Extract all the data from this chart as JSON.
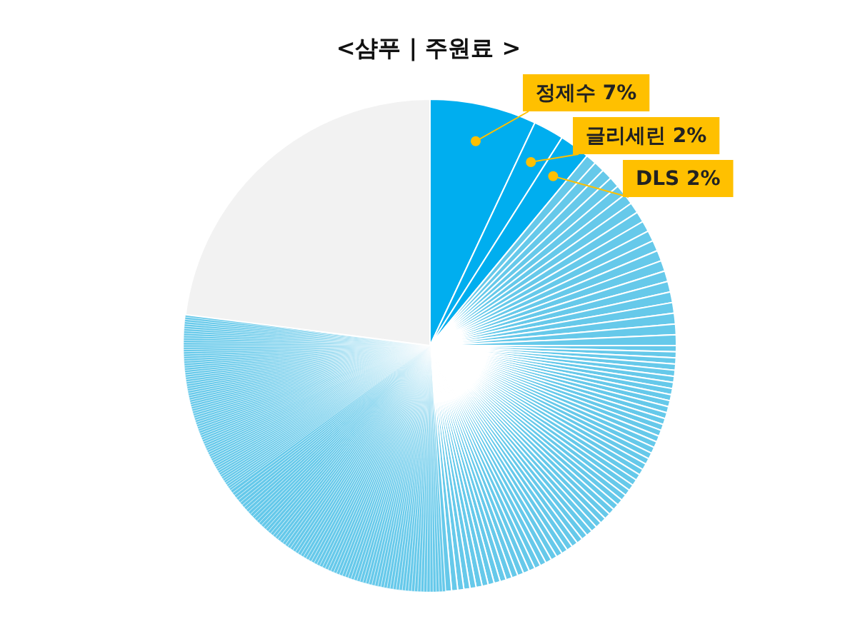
{
  "chart_data": {
    "type": "pie",
    "title": "<샴푸 | 주원료 >",
    "categories": [
      "정제수",
      "글리세린",
      "DLS",
      null,
      null,
      null,
      null,
      null,
      null,
      null,
      null,
      null,
      null,
      null,
      null,
      null,
      null,
      null,
      null,
      null,
      null,
      null,
      null,
      null,
      null,
      null,
      null,
      null,
      null,
      null,
      null,
      null,
      null,
      null,
      null,
      null,
      null,
      null,
      null,
      null,
      null,
      null,
      null,
      null,
      null,
      null,
      null,
      null,
      null,
      null,
      null,
      null,
      null,
      null,
      null,
      null,
      null,
      null,
      null,
      null,
      null,
      null,
      null,
      null,
      null,
      null,
      null,
      null,
      null,
      null,
      null,
      null,
      null,
      null,
      null,
      null,
      null,
      null,
      null,
      null,
      null,
      null,
      null,
      null,
      null,
      null,
      null,
      null,
      null,
      null,
      null,
      null,
      null,
      null,
      null,
      null,
      null,
      null,
      null,
      null,
      null,
      null,
      null,
      null,
      null,
      null,
      null,
      null,
      null,
      null,
      null,
      null,
      null,
      null,
      null,
      null,
      null,
      null,
      null,
      null,
      null,
      null,
      null,
      null,
      null,
      null,
      null,
      null,
      null,
      null,
      null,
      null,
      null,
      null,
      null,
      null,
      null,
      null,
      null,
      null,
      null,
      null,
      null,
      null,
      null,
      null,
      null,
      null,
      null,
      null,
      null,
      null,
      null,
      null,
      null,
      null,
      null,
      null,
      null,
      null,
      null,
      null,
      null,
      null,
      null,
      null,
      null,
      null,
      null,
      null,
      null,
      null,
      null,
      null,
      null,
      null,
      null,
      null,
      null,
      null,
      null,
      null,
      null,
      null,
      null,
      null,
      null,
      null,
      null,
      null,
      null,
      null,
      null,
      null,
      null,
      null,
      null,
      null,
      null,
      null,
      null,
      null,
      null,
      null,
      null,
      null,
      null,
      null,
      null,
      null,
      null,
      null,
      null,
      null,
      null,
      null,
      null,
      null,
      null,
      null,
      null,
      null,
      null,
      null,
      null,
      null,
      null,
      null,
      null,
      null,
      null,
      null,
      null,
      null,
      null,
      null,
      null,
      null,
      null,
      null,
      null,
      null,
      null,
      null
    ],
    "values": [
      7,
      2,
      2,
      0.7,
      0.7,
      0.7,
      0.7,
      0.7,
      0.7,
      0.7,
      0.7,
      0.7,
      0.7,
      0.7,
      0.7,
      0.7,
      0.7,
      0.7,
      0.7,
      0.7,
      0.7,
      0.7,
      0.7,
      0.4,
      0.4,
      0.4,
      0.4,
      0.4,
      0.4,
      0.4,
      0.4,
      0.4,
      0.4,
      0.4,
      0.4,
      0.4,
      0.4,
      0.4,
      0.4,
      0.4,
      0.4,
      0.4,
      0.4,
      0.4,
      0.4,
      0.4,
      0.4,
      0.4,
      0.4,
      0.4,
      0.4,
      0.4,
      0.4,
      0.4,
      0.4,
      0.4,
      0.4,
      0.4,
      0.4,
      0.4,
      0.4,
      0.4,
      0.4,
      0.4,
      0.4,
      0.4,
      0.4,
      0.4,
      0.4,
      0.4,
      0.4,
      0.4,
      0.4,
      0.4,
      0.4,
      0.4,
      0.4,
      0.4,
      0.4,
      0.4,
      0.4,
      0.4,
      0.4,
      0.2,
      0.2,
      0.2,
      0.2,
      0.2,
      0.2,
      0.2,
      0.2,
      0.2,
      0.2,
      0.2,
      0.2,
      0.2,
      0.2,
      0.2,
      0.2,
      0.2,
      0.2,
      0.2,
      0.2,
      0.2,
      0.2,
      0.2,
      0.2,
      0.2,
      0.2,
      0.2,
      0.2,
      0.2,
      0.2,
      0.2,
      0.2,
      0.2,
      0.2,
      0.2,
      0.2,
      0.2,
      0.2,
      0.2,
      0.2,
      0.2,
      0.2,
      0.2,
      0.2,
      0.2,
      0.2,
      0.2,
      0.2,
      0.2,
      0.2,
      0.2,
      0.2,
      0.2,
      0.2,
      0.2,
      0.2,
      0.2,
      0.2,
      0.2,
      0.2,
      0.2,
      0.2,
      0.2,
      0.2,
      0.2,
      0.2,
      0.2,
      0.2,
      0.2,
      0.2,
      0.2,
      0.2,
      0.2,
      0.2,
      0.2,
      0.2,
      0.2,
      0.2,
      0.2,
      0.2,
      0.15,
      0.15,
      0.15,
      0.15,
      0.15,
      0.15,
      0.15,
      0.15,
      0.15,
      0.15,
      0.15,
      0.15,
      0.15,
      0.15,
      0.15,
      0.15,
      0.15,
      0.15,
      0.15,
      0.15,
      0.15,
      0.15,
      0.15,
      0.15,
      0.15,
      0.15,
      0.15,
      0.15,
      0.15,
      0.15,
      0.15,
      0.15,
      0.15,
      0.15,
      0.15,
      0.15,
      0.15,
      0.15,
      0.15,
      0.15,
      0.15,
      0.15,
      0.15,
      0.15,
      0.15,
      0.15,
      0.15,
      0.15,
      0.15,
      0.15,
      0.15,
      0.15,
      0.15,
      0.15,
      0.15,
      0.15,
      0.15,
      0.15,
      0.15,
      0.15,
      0.15,
      0.15,
      0.15,
      0.15,
      0.15,
      0.15,
      0.15,
      0.15,
      0.15,
      0.15,
      0.15,
      0.15,
      0.15,
      0.15,
      0.15,
      0.15,
      0.15,
      0.15,
      0.15,
      0.15,
      23
    ],
    "value_labels": [
      "7%",
      "2%",
      "2%",
      null,
      null,
      null,
      null,
      null,
      null,
      null,
      null,
      null,
      null,
      null,
      null,
      null,
      null,
      null,
      null,
      null,
      null,
      null,
      null,
      null,
      null,
      null,
      null,
      null,
      null,
      null,
      null,
      null,
      null,
      null,
      null,
      null,
      null,
      null,
      null,
      null,
      null,
      null,
      null,
      null,
      null,
      null,
      null,
      null,
      null,
      null,
      null,
      null,
      null,
      null,
      null,
      null,
      null,
      null,
      null,
      null,
      null,
      null,
      null,
      null,
      null,
      null,
      null,
      null,
      null,
      null,
      null,
      null,
      null,
      null,
      null,
      null,
      null,
      null,
      null,
      null,
      null,
      null,
      null,
      null,
      null,
      null,
      null,
      null,
      null,
      null,
      null,
      null,
      null,
      null,
      null,
      null,
      null,
      null,
      null,
      null,
      null,
      null,
      null,
      null,
      null,
      null,
      null,
      null,
      null,
      null,
      null,
      null,
      null,
      null,
      null,
      null,
      null,
      null,
      null,
      null,
      null,
      null,
      null,
      null,
      null,
      null,
      null,
      null,
      null,
      null,
      null,
      null,
      null,
      null,
      null,
      null,
      null,
      null,
      null,
      null,
      null,
      null,
      null,
      null,
      null,
      null,
      null,
      null,
      null,
      null,
      null,
      null,
      null,
      null,
      null,
      null,
      null,
      null,
      null,
      null,
      null,
      null,
      null,
      null,
      null,
      null,
      null,
      null,
      null,
      null,
      null,
      null,
      null,
      null,
      null,
      null,
      null,
      null,
      null,
      null,
      null,
      null,
      null,
      null,
      null,
      null,
      null,
      null,
      null,
      null,
      null,
      null,
      null,
      null,
      null,
      null,
      null,
      null,
      null,
      null,
      null,
      null,
      null,
      null,
      null,
      null,
      null,
      null,
      null,
      null,
      null,
      null,
      null,
      null,
      null,
      null,
      null,
      null,
      null,
      null,
      null,
      null,
      null,
      null,
      null,
      null,
      null,
      null,
      null,
      null,
      null,
      null,
      null,
      null,
      null,
      null,
      null,
      null,
      null,
      null,
      null,
      null,
      null,
      null
    ],
    "colors": [
      "#00aeef",
      "#00aeef",
      "#00aeef",
      "#66c9ea",
      "#66c9ea",
      "#66c9ea",
      "#66c9ea",
      "#66c9ea",
      "#66c9ea",
      "#66c9ea",
      "#66c9ea",
      "#66c9ea",
      "#66c9ea",
      "#66c9ea",
      "#66c9ea",
      "#66c9ea",
      "#66c9ea",
      "#66c9ea",
      "#66c9ea",
      "#66c9ea",
      "#66c9ea",
      "#66c9ea",
      "#66c9ea",
      "#66c9ea",
      "#66c9ea",
      "#66c9ea",
      "#66c9ea",
      "#66c9ea",
      "#66c9ea",
      "#66c9ea",
      "#66c9ea",
      "#66c9ea",
      "#66c9ea",
      "#66c9ea",
      "#66c9ea",
      "#66c9ea",
      "#66c9ea",
      "#66c9ea",
      "#66c9ea",
      "#66c9ea",
      "#66c9ea",
      "#66c9ea",
      "#66c9ea",
      "#66c9ea",
      "#66c9ea",
      "#66c9ea",
      "#66c9ea",
      "#66c9ea",
      "#66c9ea",
      "#66c9ea",
      "#66c9ea",
      "#66c9ea",
      "#66c9ea",
      "#66c9ea",
      "#66c9ea",
      "#66c9ea",
      "#66c9ea",
      "#66c9ea",
      "#66c9ea",
      "#66c9ea",
      "#66c9ea",
      "#66c9ea",
      "#66c9ea",
      "#66c9ea",
      "#66c9ea",
      "#66c9ea",
      "#66c9ea",
      "#66c9ea",
      "#66c9ea",
      "#66c9ea",
      "#66c9ea",
      "#66c9ea",
      "#66c9ea",
      "#66c9ea",
      "#66c9ea",
      "#66c9ea",
      "#66c9ea",
      "#66c9ea",
      "#66c9ea",
      "#66c9ea",
      "#66c9ea",
      "#66c9ea",
      "#66c9ea",
      "#66c9ea",
      "#66c9ea",
      "#66c9ea",
      "#66c9ea",
      "#66c9ea",
      "#66c9ea",
      "#66c9ea",
      "#66c9ea",
      "#66c9ea",
      "#66c9ea",
      "#66c9ea",
      "#66c9ea",
      "#66c9ea",
      "#66c9ea",
      "#66c9ea",
      "#66c9ea",
      "#66c9ea",
      "#66c9ea",
      "#66c9ea",
      "#66c9ea",
      "#66c9ea",
      "#66c9ea",
      "#66c9ea",
      "#66c9ea",
      "#66c9ea",
      "#66c9ea",
      "#66c9ea",
      "#66c9ea",
      "#66c9ea",
      "#66c9ea",
      "#66c9ea",
      "#66c9ea",
      "#66c9ea",
      "#66c9ea",
      "#66c9ea",
      "#66c9ea",
      "#66c9ea",
      "#66c9ea",
      "#66c9ea",
      "#66c9ea",
      "#66c9ea",
      "#66c9ea",
      "#66c9ea",
      "#66c9ea",
      "#66c9ea",
      "#66c9ea",
      "#66c9ea",
      "#66c9ea",
      "#66c9ea",
      "#66c9ea",
      "#66c9ea",
      "#66c9ea",
      "#66c9ea",
      "#66c9ea",
      "#66c9ea",
      "#66c9ea",
      "#66c9ea",
      "#66c9ea",
      "#66c9ea",
      "#66c9ea",
      "#66c9ea",
      "#66c9ea",
      "#66c9ea",
      "#66c9ea",
      "#66c9ea",
      "#66c9ea",
      "#66c9ea",
      "#66c9ea",
      "#66c9ea",
      "#66c9ea",
      "#66c9ea",
      "#66c9ea",
      "#66c9ea",
      "#66c9ea",
      "#66c9ea",
      "#66c9ea",
      "#66c9ea",
      "#66c9ea",
      "#66c9ea",
      "#66c9ea",
      "#66c9ea",
      "#66c9ea",
      "#66c9ea",
      "#66c9ea",
      "#66c9ea",
      "#66c9ea",
      "#66c9ea",
      "#66c9ea",
      "#66c9ea",
      "#66c9ea",
      "#66c9ea",
      "#66c9ea",
      "#66c9ea",
      "#66c9ea",
      "#66c9ea",
      "#66c9ea",
      "#66c9ea",
      "#66c9ea",
      "#66c9ea",
      "#66c9ea",
      "#66c9ea",
      "#66c9ea",
      "#66c9ea",
      "#66c9ea",
      "#66c9ea",
      "#66c9ea",
      "#66c9ea",
      "#66c9ea",
      "#66c9ea",
      "#66c9ea",
      "#66c9ea",
      "#66c9ea",
      "#66c9ea",
      "#66c9ea",
      "#66c9ea",
      "#66c9ea",
      "#66c9ea",
      "#66c9ea",
      "#66c9ea",
      "#66c9ea",
      "#66c9ea",
      "#66c9ea",
      "#66c9ea",
      "#66c9ea",
      "#66c9ea",
      "#66c9ea",
      "#66c9ea",
      "#66c9ea",
      "#66c9ea",
      "#66c9ea",
      "#66c9ea",
      "#66c9ea",
      "#66c9ea",
      "#66c9ea",
      "#66c9ea",
      "#66c9ea",
      "#66c9ea",
      "#66c9ea",
      "#66c9ea",
      "#66c9ea",
      "#66c9ea",
      "#66c9ea",
      "#66c9ea",
      "#66c9ea",
      "#66c9ea",
      "#66c9ea",
      "#66c9ea",
      "#66c9ea",
      "#66c9ea",
      "#66c9ea",
      "#66c9ea",
      "#66c9ea",
      "#66c9ea",
      "#66c9ea",
      "#66c9ea",
      "#66c9ea",
      "#66c9ea",
      "#66c9ea",
      "#66c9ea",
      "#66c9ea",
      "#f2f2f2"
    ]
  }
}
